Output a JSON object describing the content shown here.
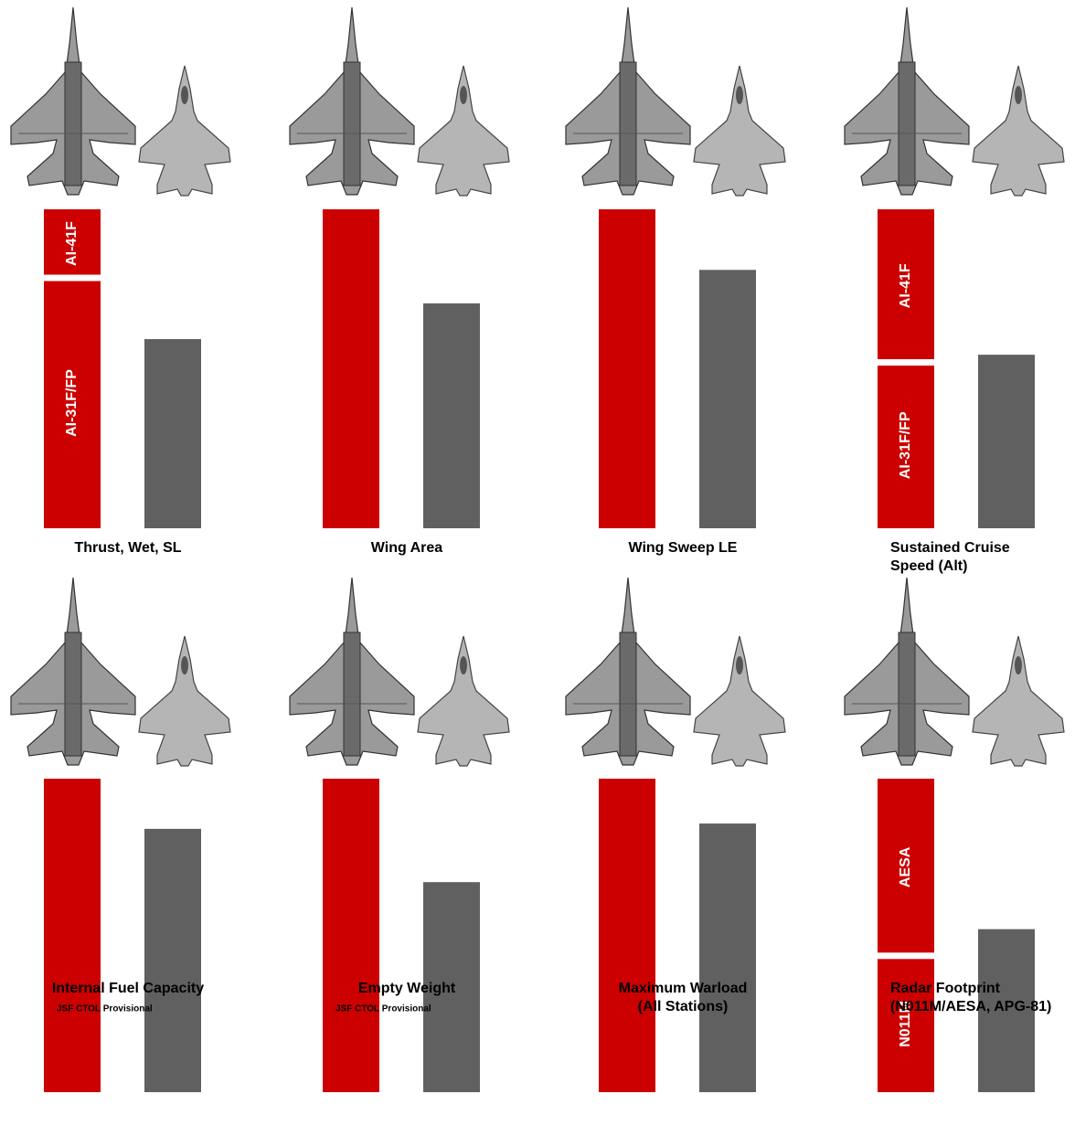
{
  "chart_data": [
    {
      "type": "bar",
      "title": [
        "Thrust, Wet, SL"
      ],
      "ylim": [
        0,
        100
      ],
      "bars": [
        {
          "color": "#cc0000",
          "segments": [
            {
              "label": "AI-31F/FP",
              "value": 78.5
            },
            {
              "label": "AI-41F",
              "value": 21.5
            }
          ]
        },
        {
          "color": "#606060",
          "segments": [
            {
              "value": 59.3
            }
          ]
        }
      ]
    },
    {
      "type": "bar",
      "title": [
        "Wing Area"
      ],
      "ylim": [
        0,
        100
      ],
      "bars": [
        {
          "color": "#cc0000",
          "segments": [
            {
              "value": 100
            }
          ]
        },
        {
          "color": "#606060",
          "segments": [
            {
              "value": 70.5
            }
          ]
        }
      ]
    },
    {
      "type": "bar",
      "title": [
        "Wing Sweep LE"
      ],
      "ylim": [
        0,
        100
      ],
      "bars": [
        {
          "color": "#cc0000",
          "segments": [
            {
              "value": 100
            }
          ]
        },
        {
          "color": "#606060",
          "segments": [
            {
              "value": 81
            }
          ]
        }
      ]
    },
    {
      "type": "bar",
      "title": [
        "Sustained Cruise",
        "Speed (Alt)"
      ],
      "ylim": [
        0,
        100
      ],
      "bars": [
        {
          "color": "#cc0000",
          "segments": [
            {
              "label": "AI-31F/FP",
              "value": 52
            },
            {
              "label": "AI-41F",
              "value": 48
            }
          ]
        },
        {
          "color": "#606060",
          "segments": [
            {
              "value": 54.4
            }
          ]
        }
      ]
    },
    {
      "type": "bar",
      "title": [
        "Internal Fuel Capacity"
      ],
      "note": "JSF  CTOL Provisional",
      "ylim": [
        0,
        100
      ],
      "bars": [
        {
          "color": "#cc0000",
          "segments": [
            {
              "value": 100
            }
          ]
        },
        {
          "color": "#606060",
          "segments": [
            {
              "value": 84
            }
          ]
        }
      ]
    },
    {
      "type": "bar",
      "title": [
        "Empty Weight"
      ],
      "note": "JSF  CTOL Provisional",
      "ylim": [
        0,
        100
      ],
      "bars": [
        {
          "color": "#cc0000",
          "segments": [
            {
              "value": 100
            }
          ]
        },
        {
          "color": "#606060",
          "segments": [
            {
              "value": 67
            }
          ]
        }
      ]
    },
    {
      "type": "bar",
      "title": [
        "Maximum Warload",
        "(All Stations)"
      ],
      "ylim": [
        0,
        100
      ],
      "bars": [
        {
          "color": "#cc0000",
          "segments": [
            {
              "value": 100
            }
          ]
        },
        {
          "color": "#606060",
          "segments": [
            {
              "value": 85.7
            }
          ]
        }
      ]
    },
    {
      "type": "bar",
      "title": [
        "Radar Footprint",
        "(N011M/AESA, APG-81)"
      ],
      "ylim": [
        0,
        100
      ],
      "bars": [
        {
          "color": "#cc0000",
          "segments": [
            {
              "label": "N011M",
              "value": 43.5
            },
            {
              "label": "AESA",
              "value": 56.5
            }
          ]
        },
        {
          "color": "#606060",
          "segments": [
            {
              "value": 52
            }
          ]
        }
      ]
    }
  ]
}
